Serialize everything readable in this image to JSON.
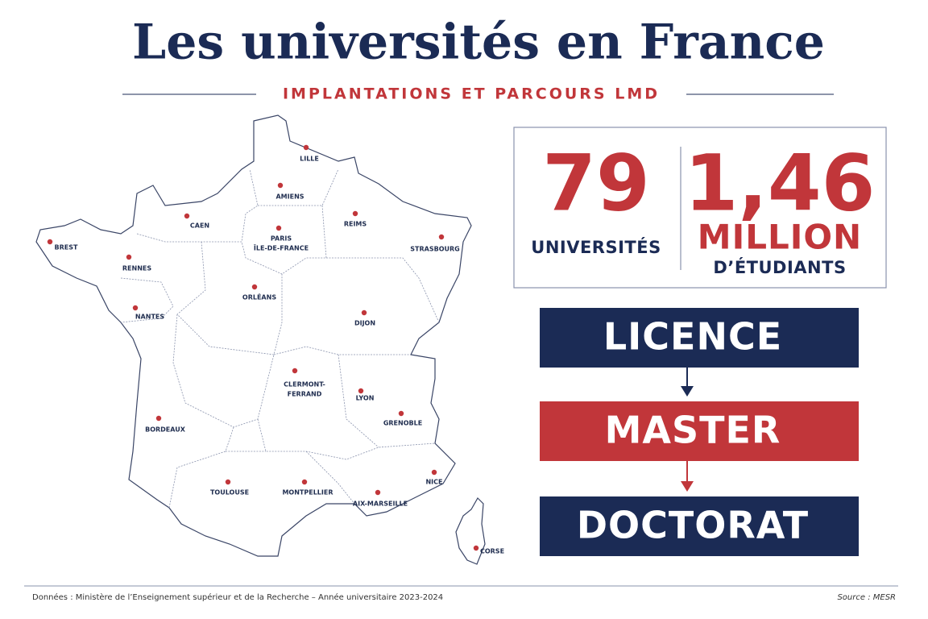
{
  "header": {
    "title": "Les universités en France",
    "subtitle": "IMPLANTATIONS ET PARCOURS LMD"
  },
  "map": {
    "cities": [
      {
        "lines": [
          "LILLE"
        ]
      },
      {
        "lines": [
          "AMIENS"
        ]
      },
      {
        "lines": [
          "CAEN"
        ]
      },
      {
        "lines": [
          "PARIS",
          "ÎLE-DE-FRANCE"
        ]
      },
      {
        "lines": [
          "REIMS"
        ]
      },
      {
        "lines": [
          "STRASBOURG"
        ]
      },
      {
        "lines": [
          "BREST"
        ]
      },
      {
        "lines": [
          "RENNES"
        ]
      },
      {
        "lines": [
          "NANTES"
        ]
      },
      {
        "lines": [
          "ORLÉANS"
        ]
      },
      {
        "lines": [
          "DIJON"
        ]
      },
      {
        "lines": [
          "CLERMONT-",
          "FERRAND"
        ]
      },
      {
        "lines": [
          "LYON"
        ]
      },
      {
        "lines": [
          "GRENOBLE"
        ]
      },
      {
        "lines": [
          "BORDEAUX"
        ]
      },
      {
        "lines": [
          "TOULOUSE"
        ]
      },
      {
        "lines": [
          "MONTPELLIER"
        ]
      },
      {
        "lines": [
          "AIX-MARSEILLE"
        ]
      },
      {
        "lines": [
          "NICE"
        ]
      },
      {
        "lines": [
          "CORSE"
        ]
      }
    ]
  },
  "stats": [
    {
      "number": "79",
      "label": [
        "UNIVERSITÉS"
      ]
    },
    {
      "number": "1,46",
      "label": [
        "MILLION",
        "D’ÉTUDIANTS"
      ]
    }
  ],
  "lmd": [
    "LICENCE",
    "MASTER",
    "DOCTORAT"
  ],
  "footer": {
    "credit": "Données : Ministère de l’Enseignement supérieur et de la Recherche – Année universitaire 2023-2024",
    "source": "Source : MESR"
  }
}
